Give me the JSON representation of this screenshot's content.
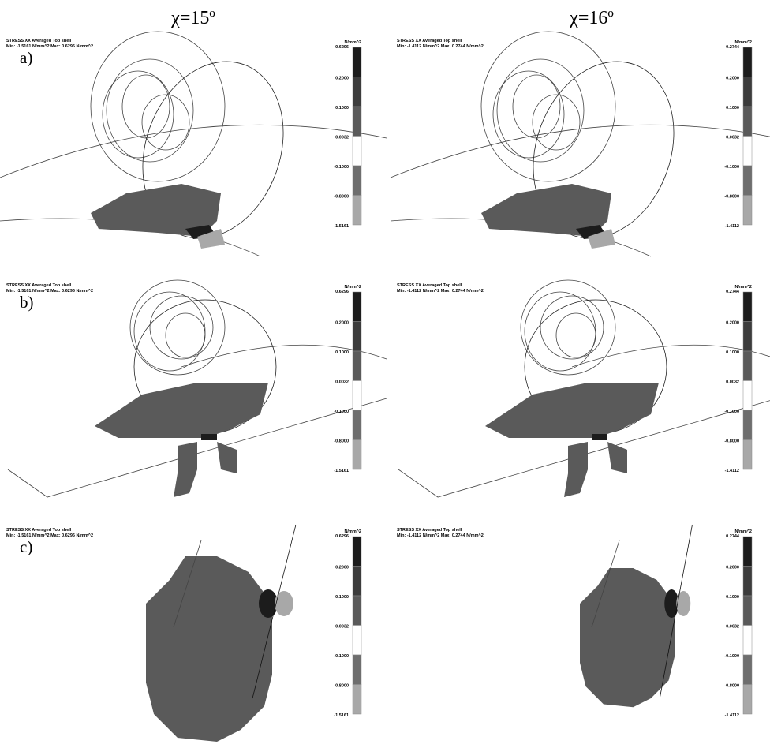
{
  "columns": [
    {
      "header": "χ=15º",
      "title": "STRESS XX Averaged Top shell",
      "range": "Min: -1.5161 N/mm^2 Max: 0.6296 N/mm^2",
      "unit": "N/mm^2",
      "scale": [
        "0.6296",
        "0.2000",
        "0.1000",
        "0.0032",
        "-0.1000",
        "-0.8000",
        "-1.5161"
      ]
    },
    {
      "header": "χ=16º",
      "title": "STRESS XX Averaged Top shell",
      "range": "Min: -1.4112 N/mm^2 Max: 0.2744 N/mm^2",
      "unit": "N/mm^2",
      "scale": [
        "0.2744",
        "0.2000",
        "0.1000",
        "0.0032",
        "-0.1000",
        "-0.8000",
        "-1.4112"
      ]
    }
  ],
  "rows": [
    "a)",
    "b)",
    "c)"
  ]
}
